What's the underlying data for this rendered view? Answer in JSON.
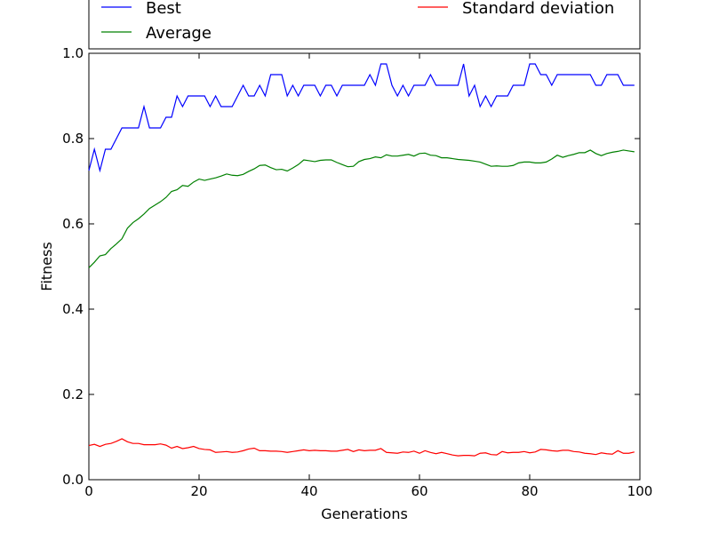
{
  "chart_data": {
    "type": "line",
    "xlabel": "Generations",
    "ylabel": "Fitness",
    "xlim": [
      0,
      100
    ],
    "ylim": [
      0.0,
      1.0
    ],
    "xticks": [
      "0",
      "20",
      "40",
      "60",
      "80",
      "100"
    ],
    "yticks": [
      "0.0",
      "0.2",
      "0.4",
      "0.6",
      "0.8",
      "1.0"
    ],
    "grid": false,
    "legend_position": "top, above plot, two columns",
    "x": [
      0,
      1,
      2,
      3,
      4,
      5,
      6,
      7,
      8,
      9,
      10,
      11,
      12,
      13,
      14,
      15,
      16,
      17,
      18,
      19,
      20,
      21,
      22,
      23,
      24,
      25,
      26,
      27,
      28,
      29,
      30,
      31,
      32,
      33,
      34,
      35,
      36,
      37,
      38,
      39,
      40,
      41,
      42,
      43,
      44,
      45,
      46,
      47,
      48,
      49,
      50,
      51,
      52,
      53,
      54,
      55,
      56,
      57,
      58,
      59,
      60,
      61,
      62,
      63,
      64,
      65,
      66,
      67,
      68,
      69,
      70,
      71,
      72,
      73,
      74,
      75,
      76,
      77,
      78,
      79,
      80,
      81,
      82,
      83,
      84,
      85,
      86,
      87,
      88,
      89,
      90,
      91,
      92,
      93,
      94,
      95,
      96,
      97,
      98,
      99
    ],
    "series": [
      {
        "name": "Best",
        "color": "#0000ff",
        "values": [
          0.725,
          0.775,
          0.725,
          0.775,
          0.775,
          0.8,
          0.825,
          0.825,
          0.825,
          0.825,
          0.875,
          0.825,
          0.825,
          0.825,
          0.85,
          0.85,
          0.9,
          0.875,
          0.9,
          0.9,
          0.9,
          0.9,
          0.875,
          0.9,
          0.875,
          0.875,
          0.875,
          0.9,
          0.925,
          0.9,
          0.9,
          0.925,
          0.9,
          0.95,
          0.95,
          0.95,
          0.9,
          0.925,
          0.9,
          0.925,
          0.925,
          0.925,
          0.9,
          0.925,
          0.925,
          0.9,
          0.925,
          0.925,
          0.925,
          0.925,
          0.925,
          0.95,
          0.925,
          0.975,
          0.975,
          0.925,
          0.9,
          0.925,
          0.9,
          0.925,
          0.925,
          0.925,
          0.95,
          0.925,
          0.925,
          0.925,
          0.925,
          0.925,
          0.975,
          0.9,
          0.925,
          0.875,
          0.9,
          0.875,
          0.9,
          0.9,
          0.9,
          0.925,
          0.925,
          0.925,
          0.975,
          0.975,
          0.95,
          0.95,
          0.925,
          0.95,
          0.95,
          0.95,
          0.95,
          0.95,
          0.95,
          0.95,
          0.925,
          0.925,
          0.95,
          0.95,
          0.95,
          0.925,
          0.925,
          0.925
        ]
      },
      {
        "name": "Average",
        "color": "#008000",
        "values": [
          0.497,
          0.51,
          0.525,
          0.528,
          0.542,
          0.553,
          0.565,
          0.59,
          0.603,
          0.612,
          0.623,
          0.636,
          0.644,
          0.652,
          0.662,
          0.676,
          0.68,
          0.69,
          0.688,
          0.698,
          0.705,
          0.702,
          0.705,
          0.708,
          0.712,
          0.717,
          0.714,
          0.713,
          0.716,
          0.723,
          0.729,
          0.737,
          0.738,
          0.732,
          0.727,
          0.728,
          0.724,
          0.731,
          0.739,
          0.75,
          0.748,
          0.746,
          0.749,
          0.75,
          0.75,
          0.744,
          0.739,
          0.734,
          0.735,
          0.746,
          0.751,
          0.753,
          0.757,
          0.755,
          0.762,
          0.759,
          0.759,
          0.761,
          0.763,
          0.759,
          0.765,
          0.766,
          0.761,
          0.76,
          0.755,
          0.755,
          0.753,
          0.751,
          0.75,
          0.749,
          0.747,
          0.745,
          0.74,
          0.735,
          0.736,
          0.735,
          0.735,
          0.737,
          0.743,
          0.745,
          0.745,
          0.743,
          0.743,
          0.745,
          0.752,
          0.761,
          0.756,
          0.76,
          0.763,
          0.767,
          0.767,
          0.773,
          0.765,
          0.76,
          0.765,
          0.768,
          0.77,
          0.773,
          0.771,
          0.769
        ]
      },
      {
        "name": "Standard deviation",
        "color": "#ff0000",
        "values": [
          0.08,
          0.083,
          0.078,
          0.083,
          0.085,
          0.09,
          0.096,
          0.089,
          0.085,
          0.085,
          0.082,
          0.082,
          0.082,
          0.084,
          0.081,
          0.074,
          0.078,
          0.073,
          0.075,
          0.078,
          0.073,
          0.071,
          0.07,
          0.064,
          0.065,
          0.066,
          0.064,
          0.065,
          0.068,
          0.072,
          0.074,
          0.068,
          0.068,
          0.067,
          0.067,
          0.066,
          0.064,
          0.066,
          0.068,
          0.07,
          0.068,
          0.069,
          0.068,
          0.068,
          0.067,
          0.067,
          0.069,
          0.071,
          0.066,
          0.07,
          0.068,
          0.069,
          0.069,
          0.073,
          0.064,
          0.063,
          0.062,
          0.065,
          0.064,
          0.067,
          0.062,
          0.068,
          0.064,
          0.061,
          0.064,
          0.061,
          0.058,
          0.056,
          0.057,
          0.057,
          0.056,
          0.062,
          0.063,
          0.059,
          0.058,
          0.066,
          0.063,
          0.064,
          0.064,
          0.066,
          0.063,
          0.065,
          0.071,
          0.07,
          0.068,
          0.067,
          0.069,
          0.069,
          0.066,
          0.065,
          0.062,
          0.061,
          0.059,
          0.063,
          0.061,
          0.06,
          0.068,
          0.062,
          0.062,
          0.065
        ]
      }
    ]
  }
}
